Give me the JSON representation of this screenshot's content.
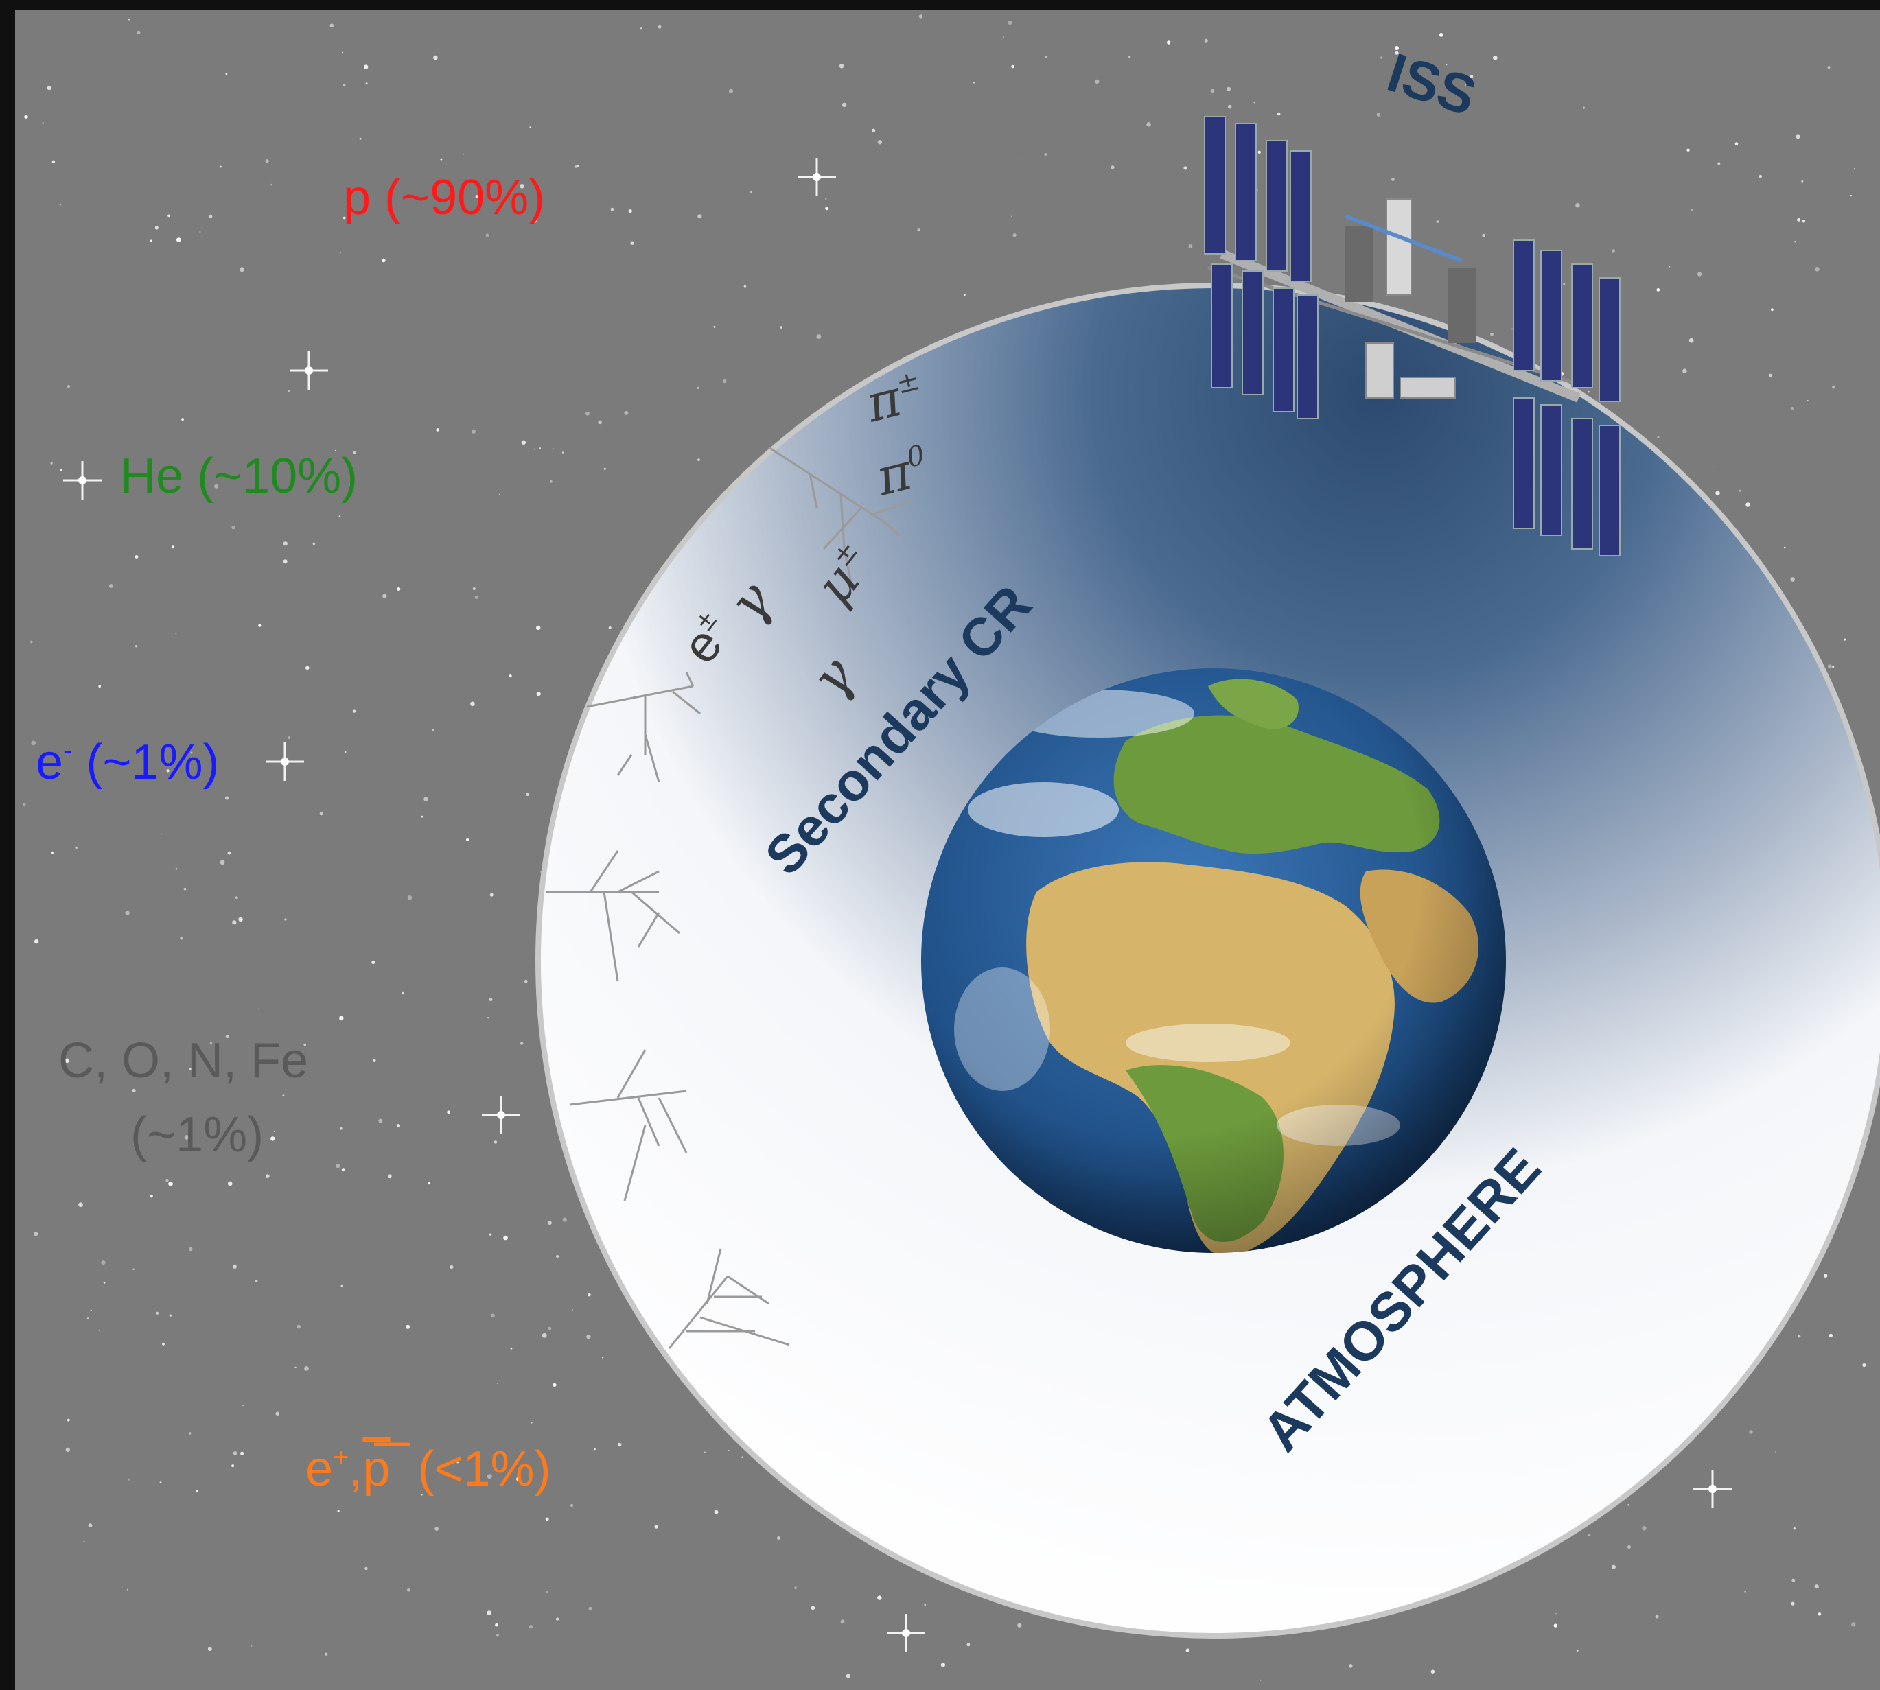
{
  "primary_cr": {
    "proton": {
      "text": "p (~90%)",
      "color": "#ff1a1a"
    },
    "helium": {
      "text": "He (~10%)",
      "color": "#1f8a1f"
    },
    "electron": {
      "base": "e",
      "sup": "-",
      "rest": " (~1%)",
      "color": "#1a1aff"
    },
    "nuclei": {
      "line1": "C, O, N, Fe",
      "line2": "(~1%)",
      "color": "#5a5a5a"
    },
    "antimatter": {
      "base": "e",
      "sup": "+",
      "sep": ",",
      "pbar": "p",
      "rest": "  (<1%)",
      "color": "#ff7a1a"
    }
  },
  "iss_label": {
    "text": "ISS",
    "color": "#1c3a5e"
  },
  "secondary_label": {
    "text": "Secondary CR",
    "color": "#1c3a5e"
  },
  "atmosphere_label": {
    "text": "ATMOSPHERE",
    "color": "#1c3a5e"
  },
  "secondary_particles": {
    "pi_pm": {
      "base": "π",
      "sup": "±"
    },
    "pi_0": {
      "base": "π",
      "sup": "0"
    },
    "mu_pm": {
      "base": "μ",
      "sup": "±"
    },
    "e_pm": {
      "base": "e",
      "sup": "±"
    },
    "gamma1": "γ",
    "gamma2": "γ",
    "color": "#3a3a3a"
  },
  "colors": {
    "space": "#7b7b7b",
    "atmosphere_edge": "#c8c8c8",
    "atmosphere_dark": "#3c5a80",
    "ocean": "#1f4f86",
    "land_green": "#6c9a3c",
    "land_desert": "#d6b46a",
    "solar_panel": "#2c357a"
  },
  "icons": {
    "earth": "earth-globe-icon",
    "station": "space-station-icon",
    "shower": "particle-shower-icon"
  }
}
